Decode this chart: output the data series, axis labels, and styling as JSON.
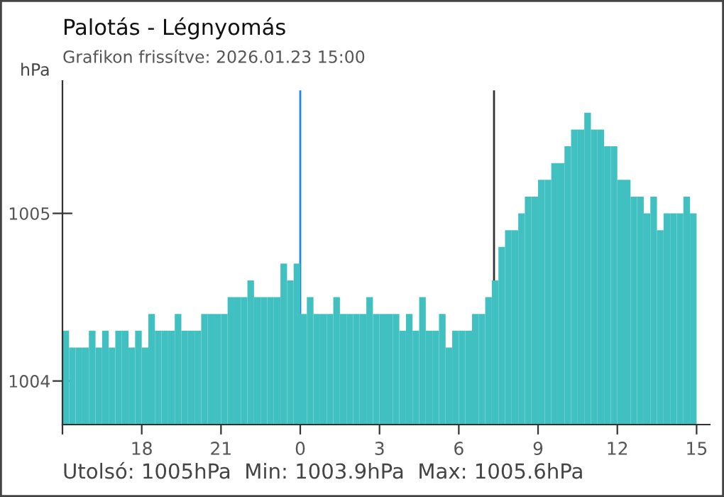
{
  "chart_data": {
    "type": "bar",
    "title": "Palotás - Légnyomás",
    "subtitle": "Grafikon frissítve: 2026.01.23 15:00",
    "ylabel": "hPa",
    "annotations": [
      "Utolsó: 1005hPa  Min: 1003.9hPa  Max: 1005.6hPa"
    ],
    "x": [
      "2026-01-22T15:00",
      "2026-01-22T15:15",
      "2026-01-22T15:30",
      "2026-01-22T15:45",
      "2026-01-22T16:00",
      "2026-01-22T16:15",
      "2026-01-22T16:30",
      "2026-01-22T16:45",
      "2026-01-22T17:00",
      "2026-01-22T17:15",
      "2026-01-22T17:30",
      "2026-01-22T17:45",
      "2026-01-22T18:00",
      "2026-01-22T18:15",
      "2026-01-22T18:30",
      "2026-01-22T18:45",
      "2026-01-22T19:00",
      "2026-01-22T19:15",
      "2026-01-22T19:30",
      "2026-01-22T19:45",
      "2026-01-22T20:00",
      "2026-01-22T20:15",
      "2026-01-22T20:30",
      "2026-01-22T20:45",
      "2026-01-22T21:00",
      "2026-01-22T21:15",
      "2026-01-22T21:30",
      "2026-01-22T21:45",
      "2026-01-22T22:00",
      "2026-01-22T22:15",
      "2026-01-22T22:30",
      "2026-01-22T22:45",
      "2026-01-22T23:00",
      "2026-01-22T23:15",
      "2026-01-22T23:30",
      "2026-01-22T23:45",
      "2026-01-23T00:00",
      "2026-01-23T00:15",
      "2026-01-23T00:30",
      "2026-01-23T00:45",
      "2026-01-23T01:00",
      "2026-01-23T01:15",
      "2026-01-23T01:30",
      "2026-01-23T01:45",
      "2026-01-23T02:00",
      "2026-01-23T02:15",
      "2026-01-23T02:30",
      "2026-01-23T02:45",
      "2026-01-23T03:00",
      "2026-01-23T03:15",
      "2026-01-23T03:30",
      "2026-01-23T03:45",
      "2026-01-23T04:00",
      "2026-01-23T04:15",
      "2026-01-23T04:30",
      "2026-01-23T04:45",
      "2026-01-23T05:00",
      "2026-01-23T05:15",
      "2026-01-23T05:30",
      "2026-01-23T05:45",
      "2026-01-23T06:00",
      "2026-01-23T06:15",
      "2026-01-23T06:30",
      "2026-01-23T06:45",
      "2026-01-23T07:00",
      "2026-01-23T07:15",
      "2026-01-23T07:30",
      "2026-01-23T07:45",
      "2026-01-23T08:00",
      "2026-01-23T08:15",
      "2026-01-23T08:30",
      "2026-01-23T08:45",
      "2026-01-23T09:00",
      "2026-01-23T09:15",
      "2026-01-23T09:30",
      "2026-01-23T09:45",
      "2026-01-23T10:00",
      "2026-01-23T10:15",
      "2026-01-23T10:30",
      "2026-01-23T10:45",
      "2026-01-23T11:00",
      "2026-01-23T11:15",
      "2026-01-23T11:30",
      "2026-01-23T11:45",
      "2026-01-23T12:00",
      "2026-01-23T12:15",
      "2026-01-23T12:30",
      "2026-01-23T12:45",
      "2026-01-23T13:00",
      "2026-01-23T13:15",
      "2026-01-23T13:30",
      "2026-01-23T13:45",
      "2026-01-23T14:00",
      "2026-01-23T14:15",
      "2026-01-23T14:30",
      "2026-01-23T14:45"
    ],
    "values": [
      1004.3,
      1004.2,
      1004.2,
      1004.2,
      1004.3,
      1004.2,
      1004.3,
      1004.2,
      1004.3,
      1004.3,
      1004.2,
      1004.3,
      1004.2,
      1004.4,
      1004.3,
      1004.3,
      1004.3,
      1004.4,
      1004.3,
      1004.3,
      1004.3,
      1004.4,
      1004.4,
      1004.4,
      1004.4,
      1004.5,
      1004.5,
      1004.5,
      1004.6,
      1004.5,
      1004.5,
      1004.5,
      1004.5,
      1004.7,
      1004.6,
      1004.7,
      1004.4,
      1004.5,
      1004.4,
      1004.4,
      1004.4,
      1004.5,
      1004.4,
      1004.4,
      1004.4,
      1004.4,
      1004.5,
      1004.4,
      1004.4,
      1004.4,
      1004.4,
      1004.3,
      1004.4,
      1004.3,
      1004.5,
      1004.3,
      1004.3,
      1004.4,
      1004.2,
      1004.3,
      1004.3,
      1004.3,
      1004.4,
      1004.4,
      1004.5,
      1004.6,
      1004.8,
      1004.9,
      1004.9,
      1005.0,
      1005.1,
      1005.1,
      1005.2,
      1005.2,
      1005.3,
      1005.3,
      1005.4,
      1005.5,
      1005.5,
      1005.6,
      1005.5,
      1005.5,
      1005.4,
      1005.4,
      1005.2,
      1005.2,
      1005.1,
      1005.1,
      1005.0,
      1005.1,
      1004.9,
      1005.0,
      1005.0,
      1005.0,
      1005.1,
      1005.0
    ],
    "color": "#40c0c0",
    "xlim": [
      "2026-01-22T15:00",
      "2026-01-23T15:30"
    ],
    "xticks": [
      {
        "value": "2026-01-22T15:00",
        "label": null
      },
      {
        "value": "2026-01-22T18:00",
        "label": "18"
      },
      {
        "value": "2026-01-22T21:00",
        "label": "21"
      },
      {
        "value": "2026-01-23T00:00",
        "label": "0"
      },
      {
        "value": "2026-01-23T03:00",
        "label": "3"
      },
      {
        "value": "2026-01-23T06:00",
        "label": "6"
      },
      {
        "value": "2026-01-23T09:00",
        "label": "9"
      },
      {
        "value": "2026-01-23T12:00",
        "label": "12"
      },
      {
        "value": "2026-01-23T15:00",
        "label": "15"
      }
    ],
    "ylim": [
      1003.74,
      1005.79
    ],
    "yticks": [
      1004,
      1005
    ],
    "ref_lines": [
      {
        "axis": "x",
        "value": "2026-01-23T00:00",
        "color": "#1e88e5"
      },
      {
        "axis": "x",
        "value": "2026-01-23T07:20",
        "color": "#333333"
      }
    ],
    "grid": false,
    "legend": false
  }
}
